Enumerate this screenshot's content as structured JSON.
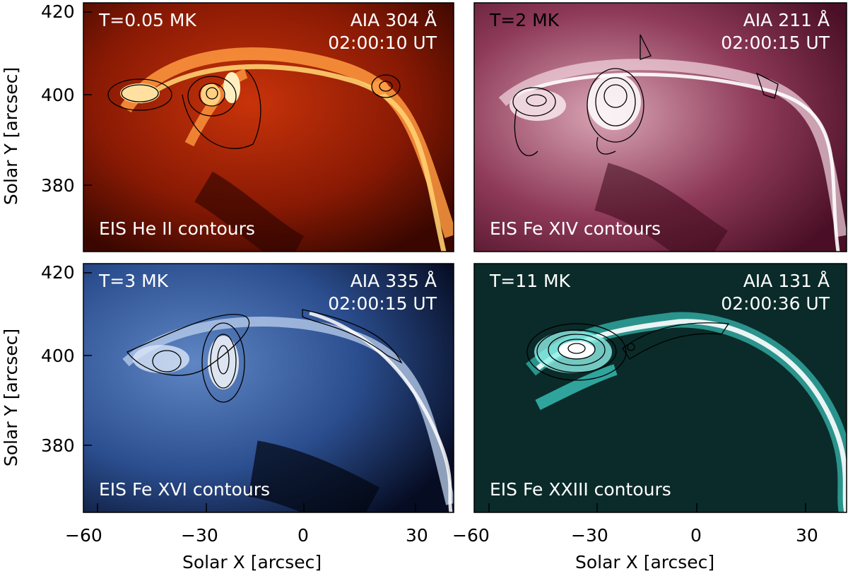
{
  "colors": {
    "he": "#e24a12",
    "fe14": "#a54a6c",
    "fe16": "#3f6fb5",
    "fe23": "#1a9a9a"
  },
  "panels": [
    {
      "temp": "T=0.05 MK",
      "aia": "AIA 304 Å",
      "time": "02:00:10 UT",
      "contours": "EIS He II contours"
    },
    {
      "temp": "T=2 MK",
      "aia": "AIA 211 Å",
      "time": "02:00:15 UT",
      "contours": "EIS Fe XIV contours"
    },
    {
      "temp": "T=3 MK",
      "aia": "AIA 335 Å",
      "time": "02:00:15 UT",
      "contours": "EIS Fe XVI contours"
    },
    {
      "temp": "T=11 MK",
      "aia": "AIA 131 Å",
      "time": "02:00:36 UT",
      "contours": "EIS Fe XXIII contours"
    }
  ],
  "axes": {
    "y_title": "Solar Y [arcsec]",
    "x_title": "Solar X [arcsec]",
    "y_ticks": [
      "420",
      "400",
      "380"
    ],
    "x_ticks": [
      "−60",
      "−30",
      "0",
      "30"
    ]
  }
}
